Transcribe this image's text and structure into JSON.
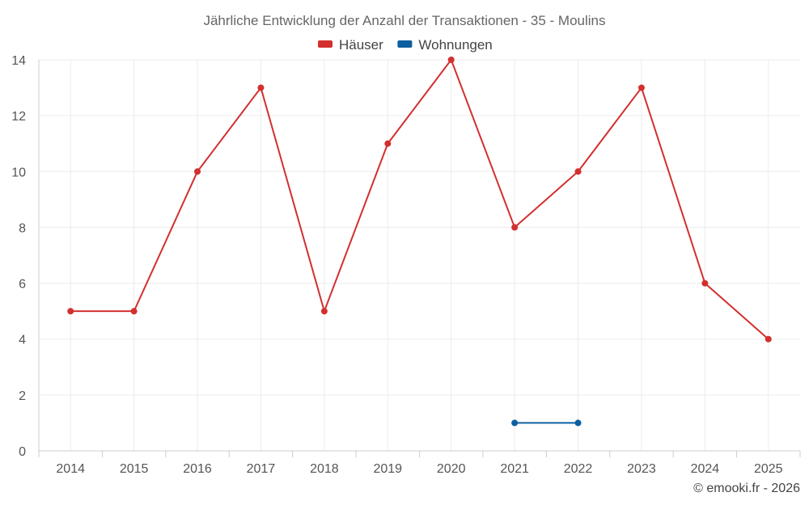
{
  "chart_data": {
    "type": "line",
    "title": "Jährliche Entwicklung der Anzahl der Transaktionen - 35 - Moulins",
    "categories": [
      "2014",
      "2015",
      "2016",
      "2017",
      "2018",
      "2019",
      "2020",
      "2021",
      "2022",
      "2023",
      "2024",
      "2025"
    ],
    "series": [
      {
        "name": "Häuser",
        "color": "#d32f2f",
        "values": [
          5,
          5,
          10,
          13,
          5,
          11,
          14,
          8,
          10,
          13,
          6,
          4
        ]
      },
      {
        "name": "Wohnungen",
        "color": "#0d5fa0",
        "values": [
          null,
          null,
          null,
          null,
          null,
          null,
          null,
          1,
          1,
          null,
          null,
          null
        ]
      }
    ],
    "yticks": [
      0,
      2,
      4,
      6,
      8,
      10,
      12,
      14
    ],
    "ylim": [
      0,
      14
    ],
    "grid": true,
    "legend": "top-center"
  },
  "credit": "© emooki.fr - 2026"
}
